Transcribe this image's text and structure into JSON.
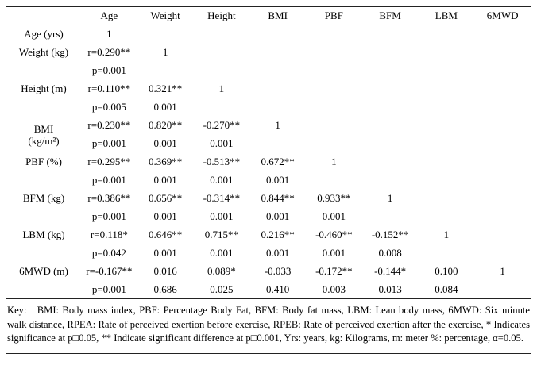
{
  "table": {
    "header": [
      "",
      "Age",
      "Weight",
      "Height",
      "BMI",
      "PBF",
      "BFM",
      "LBM",
      "6MWD"
    ],
    "rows": [
      {
        "label": "Age (yrs)",
        "r": [
          "1"
        ]
      },
      {
        "label": "Weight (kg)",
        "r": [
          "r=0.290**",
          "1"
        ],
        "p": [
          "p=0.001"
        ]
      },
      {
        "label": "Height (m)",
        "r": [
          "r=0.110**",
          "0.321**",
          "1"
        ],
        "p": [
          "p=0.005",
          "0.001"
        ]
      },
      {
        "label": "BMI",
        "label2": "(kg/m²)",
        "r": [
          "r=0.230**",
          "0.820**",
          "-0.270**",
          "1"
        ],
        "p": [
          "p=0.001",
          "0.001",
          "0.001"
        ]
      },
      {
        "label": "PBF (%)",
        "r": [
          "r=0.295**",
          "0.369**",
          "-0.513**",
          "0.672**",
          "1"
        ],
        "p": [
          "p=0.001",
          "0.001",
          "0.001",
          "0.001"
        ]
      },
      {
        "label": "BFM (kg)",
        "r": [
          "r=0.386**",
          "0.656**",
          "-0.314**",
          "0.844**",
          "0.933**",
          "1"
        ],
        "p": [
          "p=0.001",
          "0.001",
          "0.001",
          "0.001",
          "0.001"
        ]
      },
      {
        "label": "LBM (kg)",
        "r": [
          "r=0.118*",
          "0.646**",
          "0.715**",
          "0.216**",
          "-0.460**",
          "-0.152**",
          "1"
        ],
        "p": [
          "p=0.042",
          "0.001",
          "0.001",
          "0.001",
          "0.001",
          "0.008"
        ]
      },
      {
        "label": "6MWD (m)",
        "r": [
          "r=-0.167**",
          "0.016",
          "0.089*",
          "-0.033",
          "-0.172**",
          "-0.144*",
          "0.100",
          "1"
        ],
        "p": [
          "p=0.001",
          "0.686",
          "0.025",
          "0.410",
          "0.003",
          "0.013",
          "0.084"
        ]
      }
    ]
  },
  "key": {
    "text": "Key:   BMI: Body mass index, PBF: Percentage Body Fat, BFM: Body fat mass, LBM: Lean body mass, 6MWD: Six minute walk distance, RPEA: Rate of perceived exertion before exercise, RPEB: Rate of perceived exertion after the exercise, * Indicates significance at p□0.05, ** Indicate significant difference at p□0.001, Yrs: years, kg: Kilograms, m: meter %: percentage, α=0.05."
  }
}
